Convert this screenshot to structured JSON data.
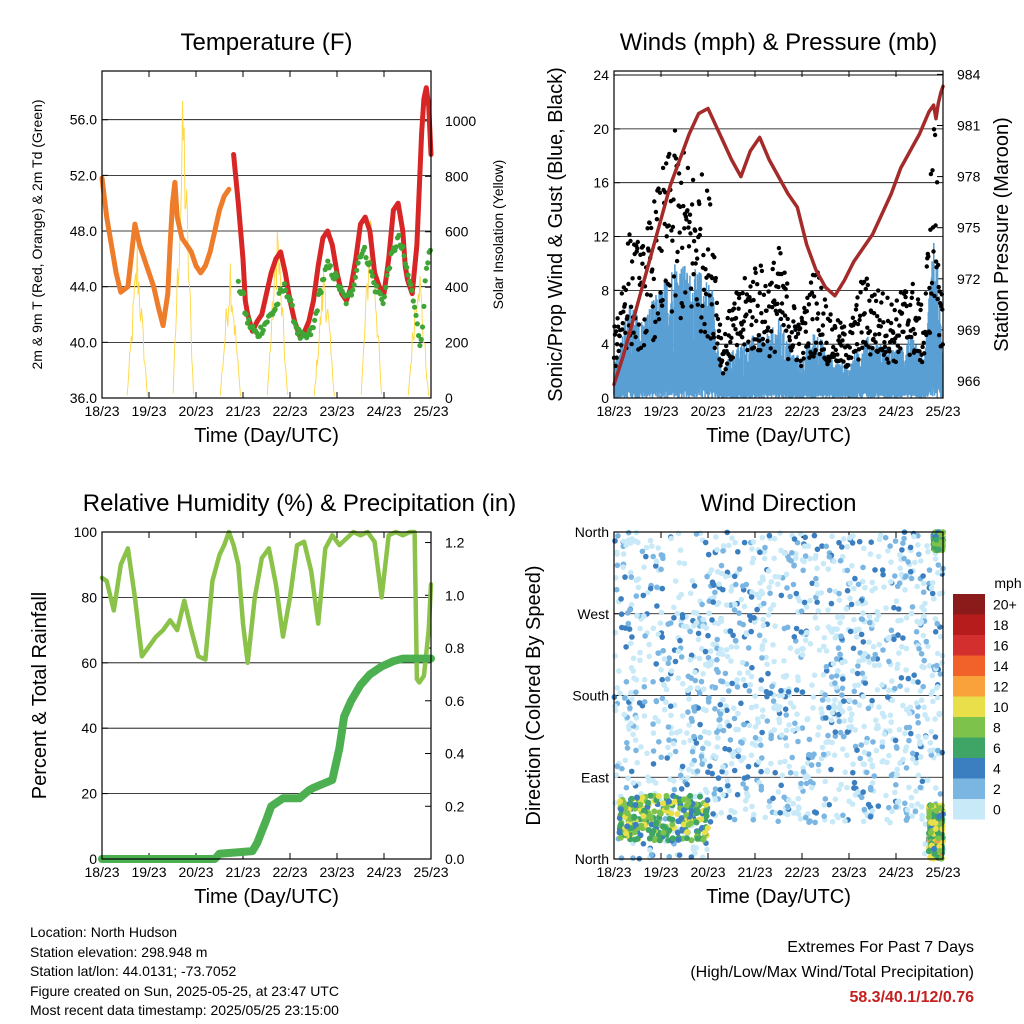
{
  "chart_data": [
    {
      "type": "line",
      "title": "Temperature (F)",
      "xlabel": "Time (Day/UTC)",
      "ylabel": "2m & 9m T (Red, Orange) & 2m Td (Green)",
      "y2label": "Solar Insolation (Yellow)",
      "x_ticks": [
        "18/23",
        "19/23",
        "20/23",
        "21/23",
        "22/23",
        "23/23",
        "24/23",
        "25/23"
      ],
      "xlim": [
        0,
        7
      ],
      "y_ticks": [
        "36.0",
        "40.0",
        "44.0",
        "48.0",
        "52.0",
        "56.0"
      ],
      "ylim": [
        36,
        59.5
      ],
      "y2_ticks": [
        "0",
        "200",
        "400",
        "600",
        "800",
        "1000"
      ],
      "y2lim": [
        0,
        1180
      ],
      "grid": true,
      "series": [
        {
          "color": "#ee7d2b",
          "x": [
            0,
            0.1,
            0.3,
            0.4,
            0.55,
            0.7,
            0.8,
            0.9,
            1.0,
            1.1,
            1.2,
            1.3,
            1.4,
            1.45,
            1.5,
            1.55,
            1.6,
            1.7,
            1.8,
            1.9,
            2.0,
            2.1,
            2.2,
            2.3,
            2.4,
            2.5,
            2.6,
            2.7
          ],
          "y": [
            51.8,
            49,
            45,
            43.6,
            44,
            48.5,
            47,
            46,
            45,
            44,
            42.5,
            41.2,
            43.5,
            47,
            50,
            51.5,
            49,
            47.5,
            47,
            46.5,
            45.5,
            45,
            45.5,
            46.5,
            48,
            49.5,
            50.5,
            51
          ]
        },
        {
          "color": "#d82626",
          "x": [
            2.8,
            2.9,
            3.0,
            3.05,
            3.1,
            3.2,
            3.3,
            3.4,
            3.5,
            3.6,
            3.7,
            3.8,
            3.9,
            4.0,
            4.1,
            4.2,
            4.3,
            4.4,
            4.5,
            4.6,
            4.7,
            4.8,
            4.9,
            5.0,
            5.1,
            5.2,
            5.3,
            5.4,
            5.5,
            5.6,
            5.7,
            5.8,
            5.9,
            6.0,
            6.1,
            6.2,
            6.3,
            6.4,
            6.45,
            6.5,
            6.6,
            6.7,
            6.8,
            6.85,
            6.9,
            6.95,
            7.0
          ],
          "y": [
            53.5,
            50,
            46,
            43,
            42,
            40.8,
            41.5,
            42,
            43.5,
            45,
            46,
            46.5,
            45,
            43,
            41.5,
            40.5,
            40.7,
            41.5,
            43,
            45.5,
            47.5,
            48,
            47,
            45,
            43.5,
            43,
            44,
            46,
            48.5,
            49,
            48,
            45,
            44,
            43.5,
            46,
            49.5,
            50,
            48,
            45.5,
            44.5,
            43.5,
            47,
            55,
            57.5,
            58.3,
            57,
            53.5
          ]
        },
        {
          "color": "#3fa535",
          "x": [
            2.9,
            3.0,
            3.05,
            3.1,
            3.2,
            3.3,
            3.4,
            3.5,
            3.6,
            3.7,
            3.8,
            3.9,
            4.0,
            4.1,
            4.2,
            4.3,
            4.4,
            4.5,
            4.6,
            4.7,
            4.8,
            4.9,
            5.0,
            5.1,
            5.2,
            5.3,
            5.4,
            5.5,
            5.6,
            5.7,
            5.8,
            5.9,
            6.0,
            6.1,
            6.2,
            6.3,
            6.4,
            6.5,
            6.6,
            6.7,
            6.75,
            6.8,
            6.85,
            6.9,
            6.95,
            7.0
          ],
          "y": [
            44,
            43.5,
            42,
            41.5,
            41,
            40.5,
            41,
            41.5,
            42,
            42.5,
            43.5,
            44,
            43,
            41.5,
            40.5,
            40.2,
            40.5,
            41,
            43,
            44.5,
            45.5,
            45,
            44.5,
            43.5,
            43,
            43.5,
            45,
            46.5,
            46.5,
            45.5,
            44,
            43.5,
            43,
            45.5,
            46.5,
            47.5,
            46.5,
            45,
            43.5,
            42,
            39.5,
            40.5,
            43,
            45,
            46,
            46.5
          ]
        }
      ],
      "solar": {
        "color": "#ffd740",
        "peaks": [
          [
            0.75,
            600
          ],
          [
            1.73,
            1180
          ],
          [
            2.73,
            560
          ],
          [
            3.73,
            700
          ],
          [
            4.73,
            540
          ],
          [
            5.73,
            800
          ],
          [
            6.73,
            580
          ]
        ]
      }
    },
    {
      "type": "scatter",
      "title": "Winds (mph) & Pressure (mb)",
      "xlabel": "Time (Day/UTC)",
      "ylabel": "Sonic/Prop Wind & Gust (Blue, Black)",
      "y2label": "Station Pressure (Maroon)",
      "x_ticks": [
        "18/23",
        "19/23",
        "20/23",
        "21/23",
        "22/23",
        "23/23",
        "24/23",
        "25/23"
      ],
      "xlim": [
        0,
        7
      ],
      "y_ticks": [
        "0",
        "4",
        "8",
        "12",
        "16",
        "20",
        "24"
      ],
      "ylim": [
        0,
        24.3
      ],
      "y2_ticks": [
        "966",
        "969",
        "972",
        "975",
        "978",
        "981",
        "984"
      ],
      "y2lim": [
        965,
        984.2
      ],
      "grid": true,
      "gust_color": "#000000",
      "wind_color": "#5a9fd4",
      "gust_envelope": {
        "x": [
          0,
          0.3,
          0.6,
          1.0,
          1.3,
          1.6,
          1.9,
          2.1,
          2.3,
          2.5,
          2.7,
          3.0,
          3.3,
          3.5,
          3.8,
          4.0,
          4.3,
          4.6,
          5.0,
          5.3,
          5.6,
          6.0,
          6.3,
          6.6,
          6.8,
          6.9,
          7.0
        ],
        "y": [
          4,
          11,
          10,
          15,
          18,
          16,
          15,
          13,
          3,
          6,
          7,
          9,
          8,
          10,
          6,
          5,
          9,
          5,
          4,
          8,
          7,
          6,
          8,
          5,
          20,
          15,
          4
        ]
      },
      "wind_envelope": {
        "x": [
          0,
          0.3,
          0.6,
          1.0,
          1.3,
          1.6,
          1.9,
          2.1,
          2.3,
          2.5,
          2.7,
          3.0,
          3.3,
          3.5,
          3.8,
          4.0,
          4.3,
          4.6,
          5.0,
          5.3,
          5.6,
          6.0,
          6.3,
          6.6,
          6.8,
          6.9,
          7.0
        ],
        "y": [
          2,
          6,
          5,
          7,
          9,
          8,
          8,
          7,
          1.5,
          3,
          3.5,
          4,
          4,
          5,
          3,
          2.5,
          4.5,
          2.5,
          2,
          4,
          3.5,
          3,
          4,
          2.5,
          10,
          8,
          2
        ]
      },
      "pressure": {
        "color": "#a52a2a",
        "x": [
          0,
          0.2,
          0.4,
          0.6,
          0.8,
          1.0,
          1.2,
          1.4,
          1.6,
          1.8,
          2.0,
          2.1,
          2.3,
          2.5,
          2.7,
          2.9,
          3.1,
          3.3,
          3.5,
          3.7,
          3.9,
          4.1,
          4.3,
          4.5,
          4.7,
          4.9,
          5.1,
          5.3,
          5.5,
          5.7,
          5.9,
          6.1,
          6.3,
          6.5,
          6.7,
          6.8,
          6.85,
          6.9,
          6.95,
          7.0
        ],
        "y": [
          965.8,
          967.5,
          969.5,
          971.5,
          973.5,
          975.5,
          977.5,
          979.0,
          980.5,
          981.7,
          982.0,
          981.4,
          980.2,
          979.0,
          978.0,
          979.5,
          980.3,
          979.0,
          978.0,
          977.0,
          976.2,
          974.0,
          972.5,
          971.5,
          971.0,
          971.9,
          973.0,
          973.8,
          974.6,
          975.8,
          977.0,
          978.5,
          979.5,
          980.5,
          981.8,
          982.2,
          981.4,
          982.3,
          982.9,
          983.3
        ]
      }
    },
    {
      "type": "line",
      "title": "Relative Humidity (%) & Precipitation (in)",
      "xlabel": "Time (Day/UTC)",
      "ylabel": "Percent & Total Rainfall",
      "x_ticks": [
        "18/23",
        "19/23",
        "20/23",
        "21/23",
        "22/23",
        "23/23",
        "24/23",
        "25/23"
      ],
      "xlim": [
        0,
        7
      ],
      "y_ticks": [
        "0",
        "20",
        "40",
        "60",
        "80",
        "100"
      ],
      "ylim": [
        0,
        100
      ],
      "y2_ticks": [
        "0.0",
        "0.2",
        "0.4",
        "0.6",
        "0.8",
        "1.0",
        "1.2"
      ],
      "y2lim": [
        0,
        1.24
      ],
      "grid": true,
      "series": [
        {
          "color": "#8bc34a",
          "x": [
            0,
            0.1,
            0.25,
            0.4,
            0.55,
            0.7,
            0.85,
            1.0,
            1.15,
            1.3,
            1.45,
            1.6,
            1.75,
            1.9,
            2.05,
            2.2,
            2.35,
            2.5,
            2.6,
            2.7,
            2.8,
            2.9,
            3.0,
            3.1,
            3.25,
            3.4,
            3.55,
            3.7,
            3.85,
            4.0,
            4.15,
            4.3,
            4.45,
            4.6,
            4.75,
            4.9,
            5.05,
            5.2,
            5.35,
            5.5,
            5.65,
            5.8,
            5.95,
            6.1,
            6.25,
            6.4,
            6.55,
            6.65,
            6.7,
            6.75,
            6.85,
            6.95,
            7.0
          ],
          "y": [
            86,
            85,
            76,
            90,
            95,
            80,
            62,
            65,
            68,
            70,
            73,
            70,
            79,
            70,
            62,
            61,
            85,
            93,
            96,
            100,
            96,
            90,
            72,
            60,
            80,
            92,
            95,
            84,
            68,
            80,
            96,
            97,
            88,
            72,
            95,
            99,
            96,
            98,
            100,
            99,
            100,
            97,
            80,
            99,
            100,
            99,
            100,
            100,
            55,
            54,
            56,
            70,
            84
          ]
        },
        {
          "color": "#4caf50",
          "x": [
            0,
            2.4,
            2.5,
            3.2,
            3.3,
            3.5,
            3.6,
            3.85,
            4.2,
            4.4,
            4.5,
            4.9,
            5.05,
            5.15,
            5.3,
            5.5,
            5.7,
            5.95,
            6.2,
            6.4,
            6.55,
            6.7,
            7.0
          ],
          "y": [
            0,
            0,
            0.02,
            0.03,
            0.06,
            0.15,
            0.2,
            0.23,
            0.23,
            0.26,
            0.27,
            0.3,
            0.42,
            0.54,
            0.6,
            0.66,
            0.7,
            0.73,
            0.75,
            0.76,
            0.76,
            0.76,
            0.76
          ]
        }
      ]
    },
    {
      "type": "scatter",
      "title": "Wind Direction",
      "xlabel": "Time (Day/UTC)",
      "ylabel": "Direction (Colored By Speed)",
      "x_ticks": [
        "18/23",
        "19/23",
        "20/23",
        "21/23",
        "22/23",
        "23/23",
        "24/23",
        "25/23"
      ],
      "xlim": [
        0,
        7
      ],
      "y_ticks": [
        "North",
        "East",
        "South",
        "West",
        "North"
      ],
      "ylim": [
        0,
        360
      ],
      "grid": true,
      "legend_title": "mph",
      "legend_position": "right",
      "legend_labels": [
        "20+",
        "18",
        "16",
        "14",
        "12",
        "10",
        "8",
        "6",
        "4",
        "2",
        "0"
      ],
      "legend_colors": [
        "#8b1a1a",
        "#b71c1c",
        "#d32f2f",
        "#f0622a",
        "#f9a23b",
        "#e8df4a",
        "#7dc24a",
        "#3fa566",
        "#3b7fc0",
        "#7bb6e3",
        "#c7e9f8"
      ],
      "dense_clusters": [
        {
          "x": [
            0.1,
            2.0
          ],
          "y": [
            20,
            70
          ],
          "speeds": [
            4,
            10
          ]
        },
        {
          "x": [
            6.7,
            7.0
          ],
          "y": [
            0,
            60
          ],
          "speeds": [
            4,
            12
          ]
        },
        {
          "x": [
            6.8,
            7.0
          ],
          "y": [
            340,
            360
          ],
          "speeds": [
            4,
            10
          ]
        }
      ]
    }
  ],
  "info": {
    "location": "Location: North Hudson",
    "elevation": "Station elevation: 298.948 m",
    "latlon": "Station lat/lon: 44.0131; -73.7052",
    "created": "Figure created on Sun, 2025-05-25, at 23:47 UTC",
    "recent": "Most recent data timestamp: 2025/05/25 23:15:00"
  },
  "extremes": {
    "line1": "Extremes For Past 7 Days",
    "line2": "(High/Low/Max Wind/Total Precipitation)",
    "values": "58.3/40.1/12/0.76"
  }
}
